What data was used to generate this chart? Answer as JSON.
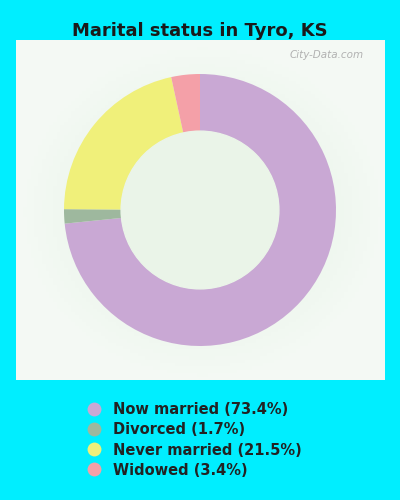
{
  "title": "Marital status in Tyro, KS",
  "title_fontsize": 13,
  "title_fontweight": "bold",
  "title_color": "#1a1a1a",
  "background_outer": "#00eeff",
  "chart_bg_color": "#cce8c8",
  "watermark": "City-Data.com",
  "categories": [
    "Now married",
    "Divorced",
    "Never married",
    "Widowed"
  ],
  "values": [
    73.4,
    1.7,
    21.5,
    3.4
  ],
  "colors": [
    "#c9a8d4",
    "#9eb89e",
    "#f0f07a",
    "#f4a0a8"
  ],
  "donut_width": 0.42,
  "legend_fontsize": 10.5,
  "legend_text_color": "#222222"
}
